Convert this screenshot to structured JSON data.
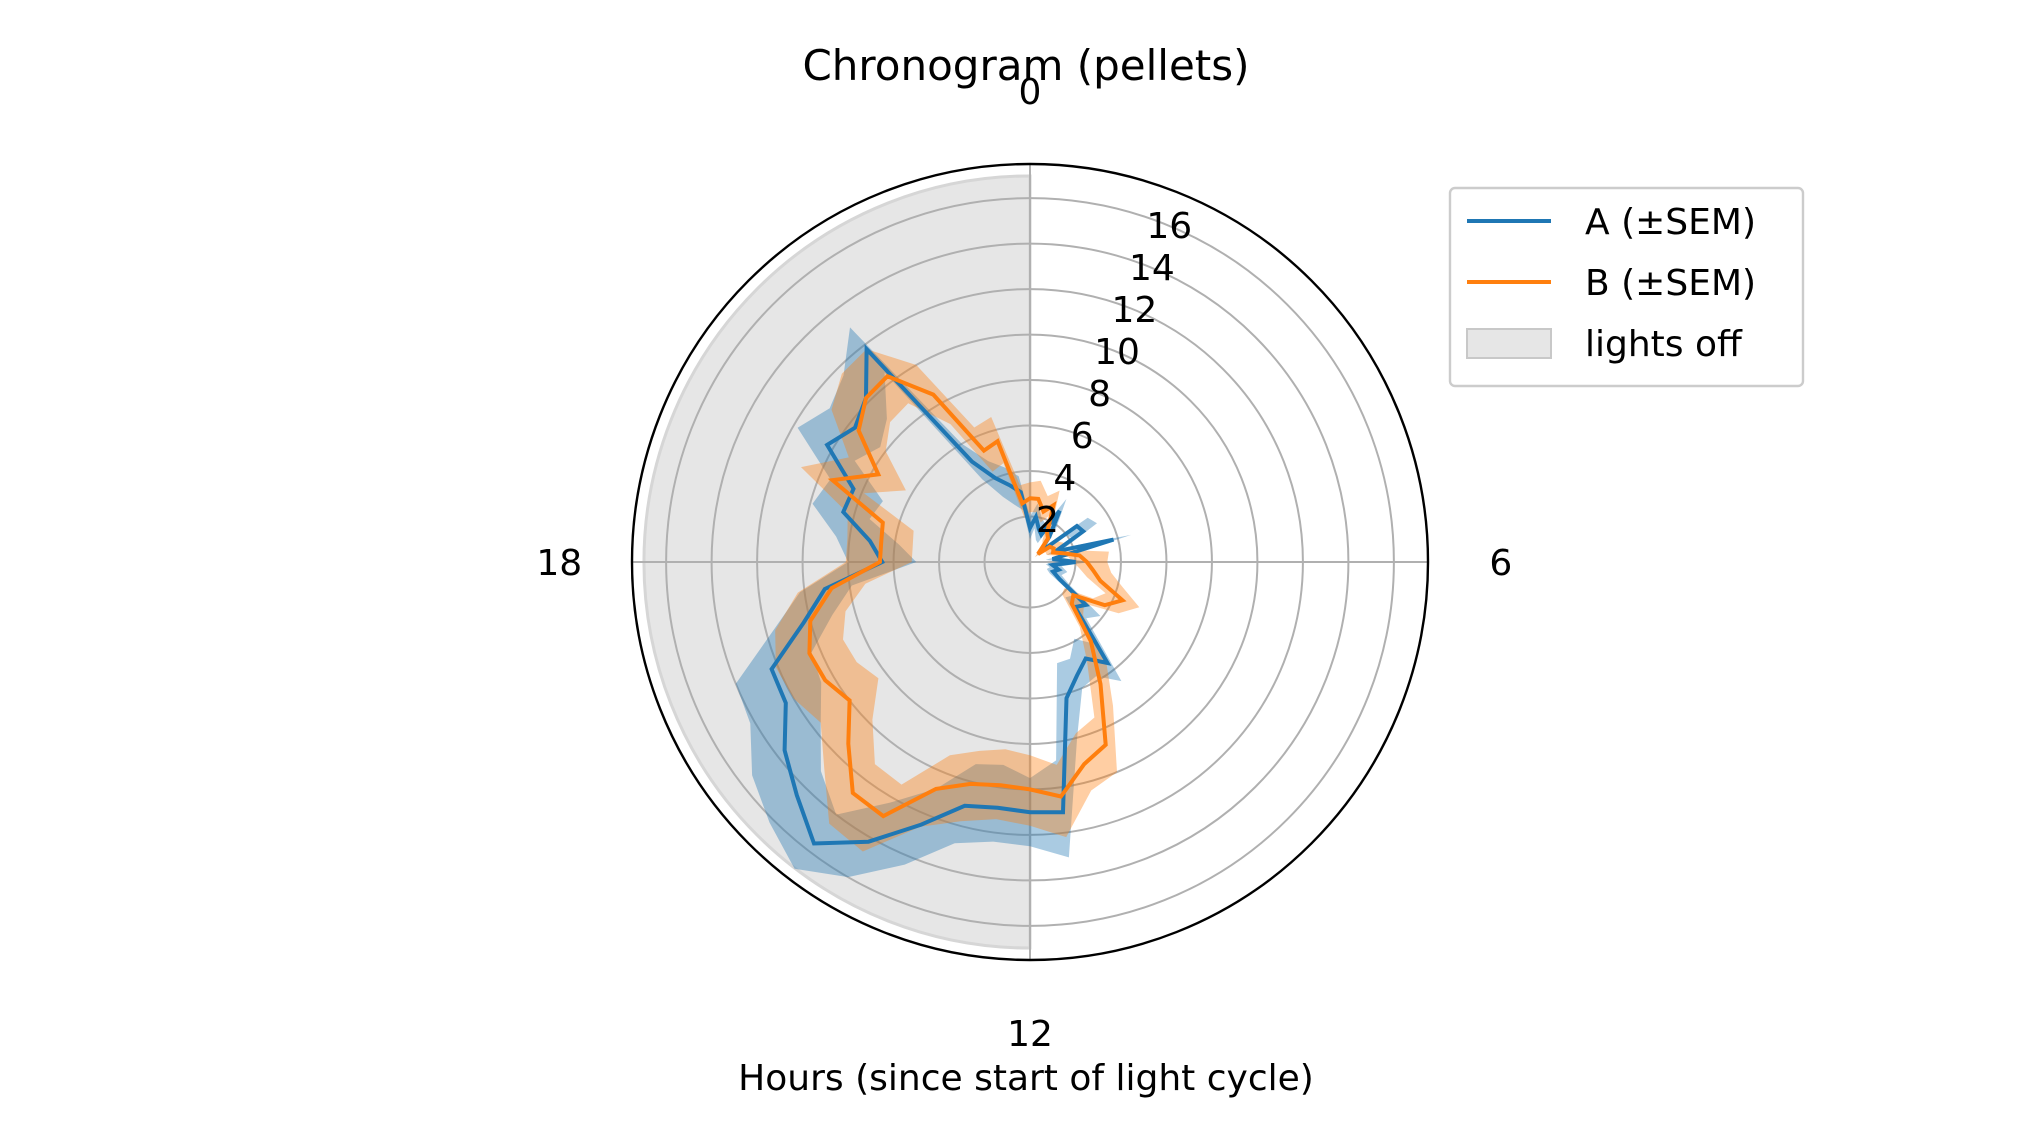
{
  "chart_data": {
    "type": "line",
    "subtype": "polar",
    "title": "Chronogram (pellets)",
    "xlabel": "Hours (since start of light cycle)",
    "theta_ticks": [
      "0",
      "6",
      "12",
      "18"
    ],
    "theta_tick_hours": [
      0,
      6,
      12,
      18
    ],
    "r_ticks": [
      "2",
      "4",
      "6",
      "8",
      "10",
      "12",
      "14",
      "16"
    ],
    "r_tick_values": [
      2,
      4,
      6,
      8,
      10,
      12,
      14,
      16
    ],
    "rlim": [
      0,
      17.5
    ],
    "grid": true,
    "legend_position": "upper-right-outside",
    "lights_off": {
      "label": "lights off",
      "start_hour": 12,
      "end_hour": 24,
      "color": "#e6e6e6"
    },
    "x": [
      0,
      0.5,
      1,
      1.5,
      2,
      2.5,
      3,
      3.5,
      4,
      4.5,
      5,
      5.5,
      6,
      6.5,
      7,
      7.5,
      8,
      8.5,
      9,
      9.5,
      10,
      10.5,
      11,
      11.5,
      12,
      12.5,
      13,
      13.5,
      14,
      14.5,
      15,
      15.5,
      16,
      16.5,
      17,
      17.5,
      18,
      18.5,
      19,
      19.5,
      20,
      20.5,
      21,
      21.5,
      22,
      22.5,
      23,
      23.5
    ],
    "series": [
      {
        "name": "A (±SEM)",
        "color": "#1f77b4",
        "values": [
          1.5,
          2.0,
          1.5,
          1.3,
          2.6,
          1.4,
          0.6,
          2.6,
          2.7,
          1.2,
          3.8,
          1.0,
          2.0,
          1.0,
          1.3,
          1.1,
          1.5,
          3.1,
          2.8,
          5.6,
          4.9,
          5.4,
          6.2,
          11.1,
          11.0,
          10.9,
          11.1,
          12.5,
          14.2,
          15.6,
          14.5,
          13.6,
          12.4,
          12.3,
          10.3,
          9.1,
          6.5,
          7.1,
          8.5,
          8.4,
          10.3,
          9.7,
          10.2,
          11.8,
          5.1,
          4.0,
          3.5,
          3.1
        ],
        "lower": [
          1.0,
          1.5,
          1.0,
          0.9,
          2.0,
          1.0,
          0.4,
          2.0,
          2.1,
          0.8,
          3.0,
          0.7,
          1.4,
          0.7,
          0.9,
          0.8,
          1.0,
          2.4,
          2.2,
          4.5,
          3.9,
          4.6,
          4.6,
          8.8,
          9.5,
          9.0,
          9.2,
          10.8,
          12.2,
          14.0,
          13.0,
          11.6,
          10.6,
          10.4,
          9.0,
          7.9,
          5.0,
          5.8,
          7.3,
          7.0,
          8.9,
          8.3,
          8.9,
          10.5,
          4.2,
          3.1,
          2.6,
          2.3
        ],
        "upper": [
          2.0,
          2.6,
          2.0,
          1.8,
          3.2,
          1.9,
          0.9,
          3.2,
          3.4,
          1.7,
          4.6,
          1.4,
          2.6,
          1.4,
          1.7,
          1.5,
          2.0,
          3.9,
          3.5,
          6.6,
          5.8,
          6.0,
          8.0,
          13.1,
          12.5,
          12.4,
          12.8,
          14.4,
          16.0,
          17.0,
          16.2,
          15.4,
          14.2,
          14.0,
          11.7,
          10.2,
          8.0,
          8.6,
          9.9,
          9.5,
          11.8,
          11.1,
          11.6,
          13.0,
          6.0,
          4.8,
          4.3,
          3.8
        ]
      },
      {
        "name": "B (±SEM)",
        "color": "#ff7f0e",
        "values": [
          2.8,
          2.8,
          2.3,
          2.7,
          1.5,
          1.3,
          0.5,
          1.1,
          1.2,
          1.1,
          1.5,
          2.2,
          2.5,
          2.8,
          3.2,
          4.4,
          3.8,
          2.4,
          2.6,
          4.4,
          6.2,
          8.7,
          9.2,
          10.4,
          10.0,
          9.9,
          10.1,
          10.8,
          12.9,
          12.8,
          11.3,
          10.0,
          10.4,
          10.5,
          10.0,
          8.8,
          6.6,
          6.6,
          6.7,
          9.4,
          7.7,
          9.5,
          10.2,
          10.3,
          8.5,
          5.3,
          5.5,
          2.6
        ],
        "lower": [
          2.2,
          2.2,
          1.8,
          2.2,
          1.1,
          0.9,
          0.3,
          0.8,
          0.8,
          0.8,
          1.1,
          1.7,
          1.9,
          2.2,
          2.6,
          3.6,
          3.2,
          1.9,
          2.0,
          3.6,
          5.0,
          7.4,
          7.8,
          9.0,
          8.5,
          8.3,
          8.6,
          9.2,
          11.3,
          11.2,
          9.8,
          8.4,
          8.8,
          8.9,
          8.4,
          7.3,
          5.2,
          5.2,
          5.3,
          7.9,
          6.3,
          8.0,
          8.7,
          8.8,
          7.0,
          4.3,
          4.5,
          2.0
        ],
        "upper": [
          3.5,
          3.6,
          3.0,
          3.4,
          2.0,
          1.8,
          0.8,
          1.5,
          1.7,
          1.5,
          2.0,
          3.5,
          3.4,
          3.6,
          4.2,
          5.2,
          4.5,
          3.0,
          3.3,
          5.5,
          7.3,
          10.0,
          10.4,
          12.2,
          11.6,
          11.4,
          11.8,
          12.6,
          14.7,
          14.5,
          12.8,
          11.6,
          12.0,
          12.1,
          11.6,
          10.3,
          8.1,
          8.1,
          8.3,
          10.9,
          9.2,
          11.0,
          11.7,
          11.8,
          10.0,
          6.4,
          6.6,
          3.4
        ]
      }
    ]
  }
}
